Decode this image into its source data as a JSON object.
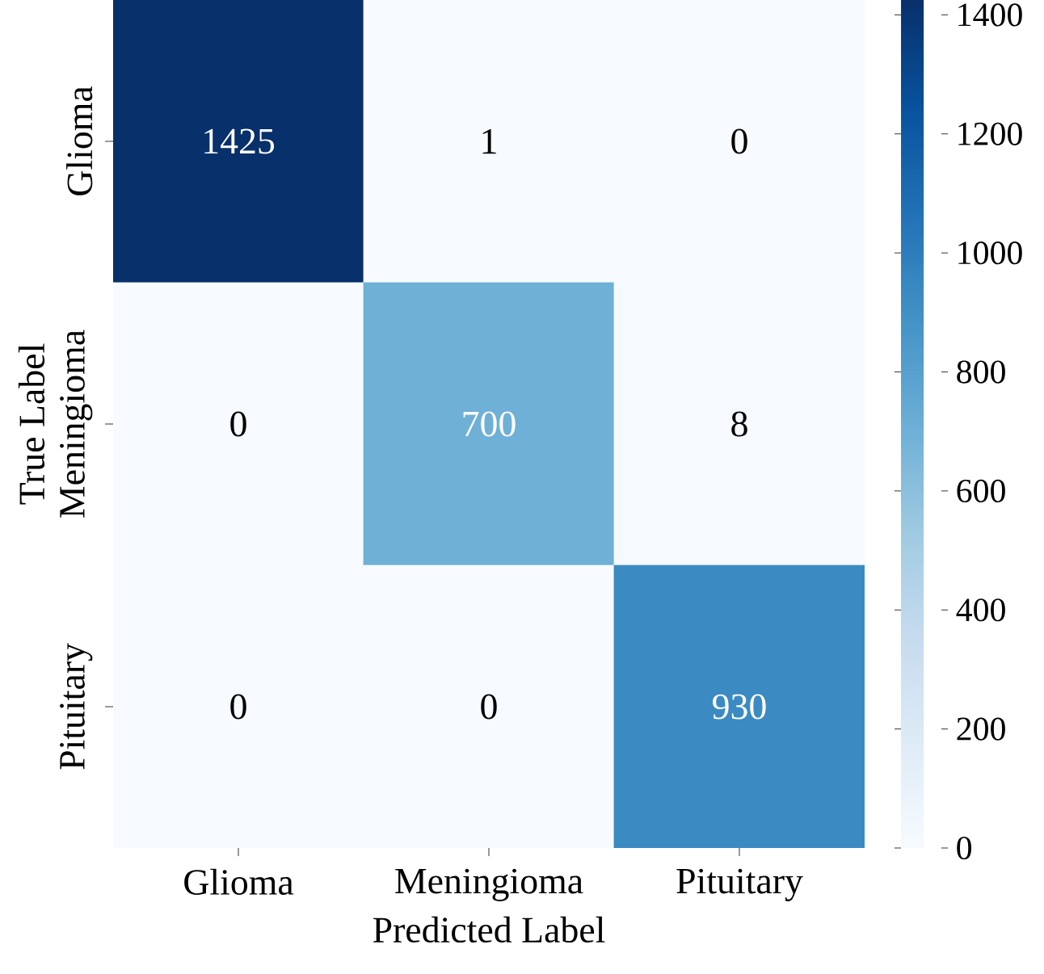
{
  "chart_data": {
    "type": "heatmap",
    "xlabel": "Predicted Label",
    "ylabel": "True Label",
    "categories": [
      "Glioma",
      "Meningioma",
      "Pituitary"
    ],
    "y_categories": [
      "Glioma",
      "Meningioma",
      "Pituitary"
    ],
    "cells": [
      [
        1425,
        1,
        0
      ],
      [
        0,
        700,
        8
      ],
      [
        0,
        0,
        930
      ]
    ],
    "data_labels": true,
    "clim": [
      0,
      1425
    ],
    "cticks": [
      0,
      200,
      400,
      600,
      800,
      1000,
      1200,
      1400
    ]
  }
}
